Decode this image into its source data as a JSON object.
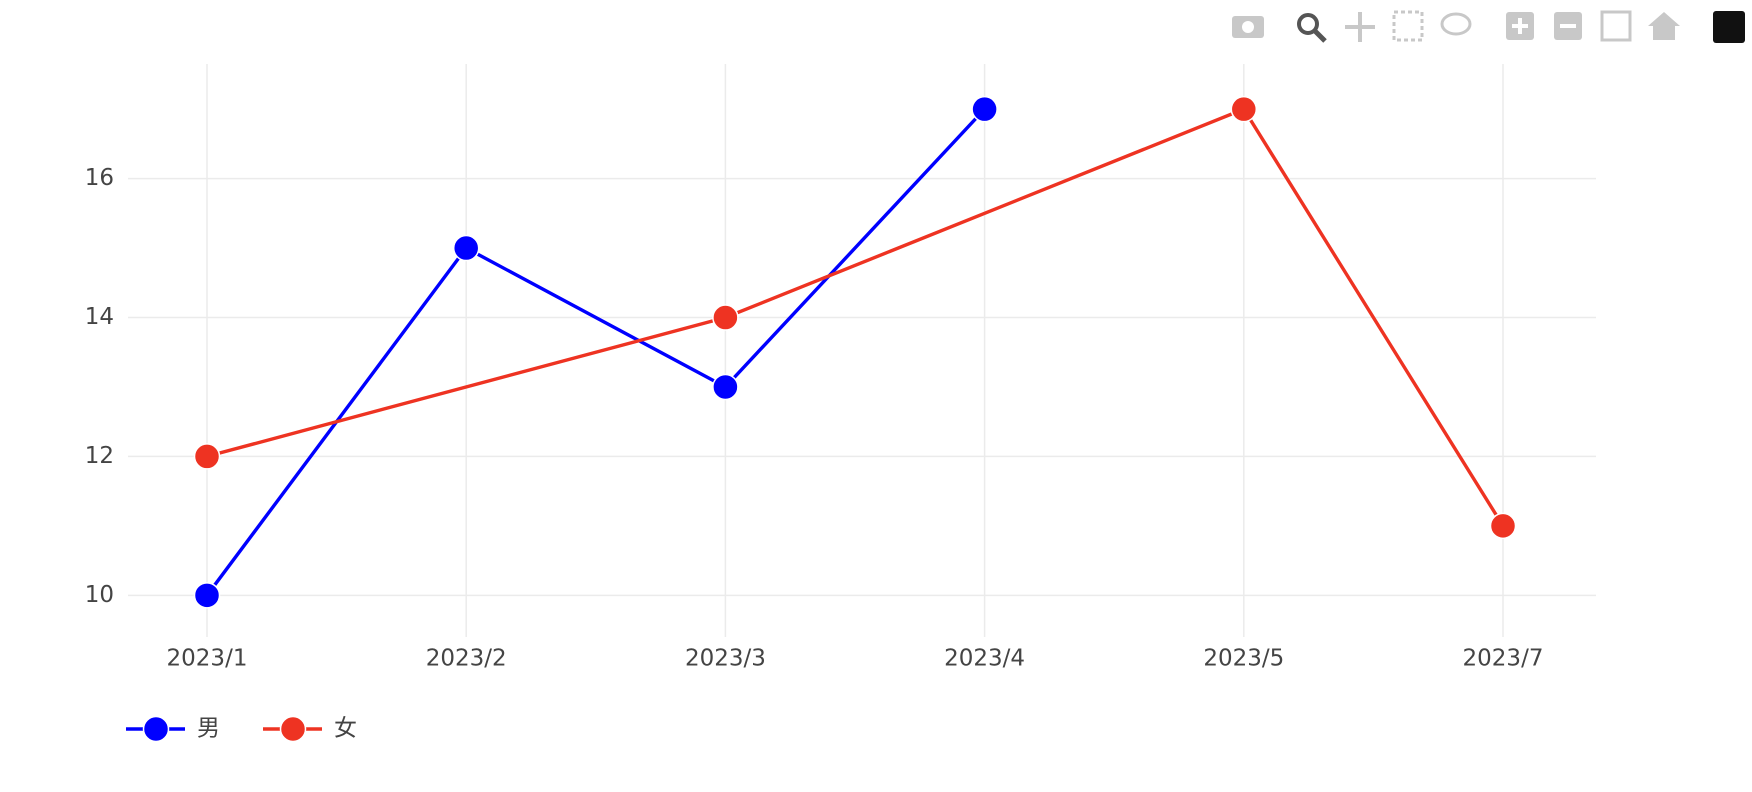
{
  "chart_data": {
    "type": "line",
    "categories": [
      "2023/1",
      "2023/2",
      "2023/3",
      "2023/4",
      "2023/5",
      "2023/7"
    ],
    "series": [
      {
        "name": "男",
        "color": "#0000ff",
        "x": [
          "2023/1",
          "2023/2",
          "2023/3",
          "2023/4"
        ],
        "values": [
          10,
          15,
          13,
          17
        ]
      },
      {
        "name": "女",
        "color": "#ee3322",
        "x": [
          "2023/1",
          "2023/3",
          "2023/5",
          "2023/7"
        ],
        "values": [
          12,
          14,
          17,
          11
        ]
      }
    ],
    "ylim": [
      9.4,
      17.65
    ],
    "yticks": [
      10,
      12,
      14,
      16
    ],
    "grid": true,
    "legend": "bottom-left"
  }
}
